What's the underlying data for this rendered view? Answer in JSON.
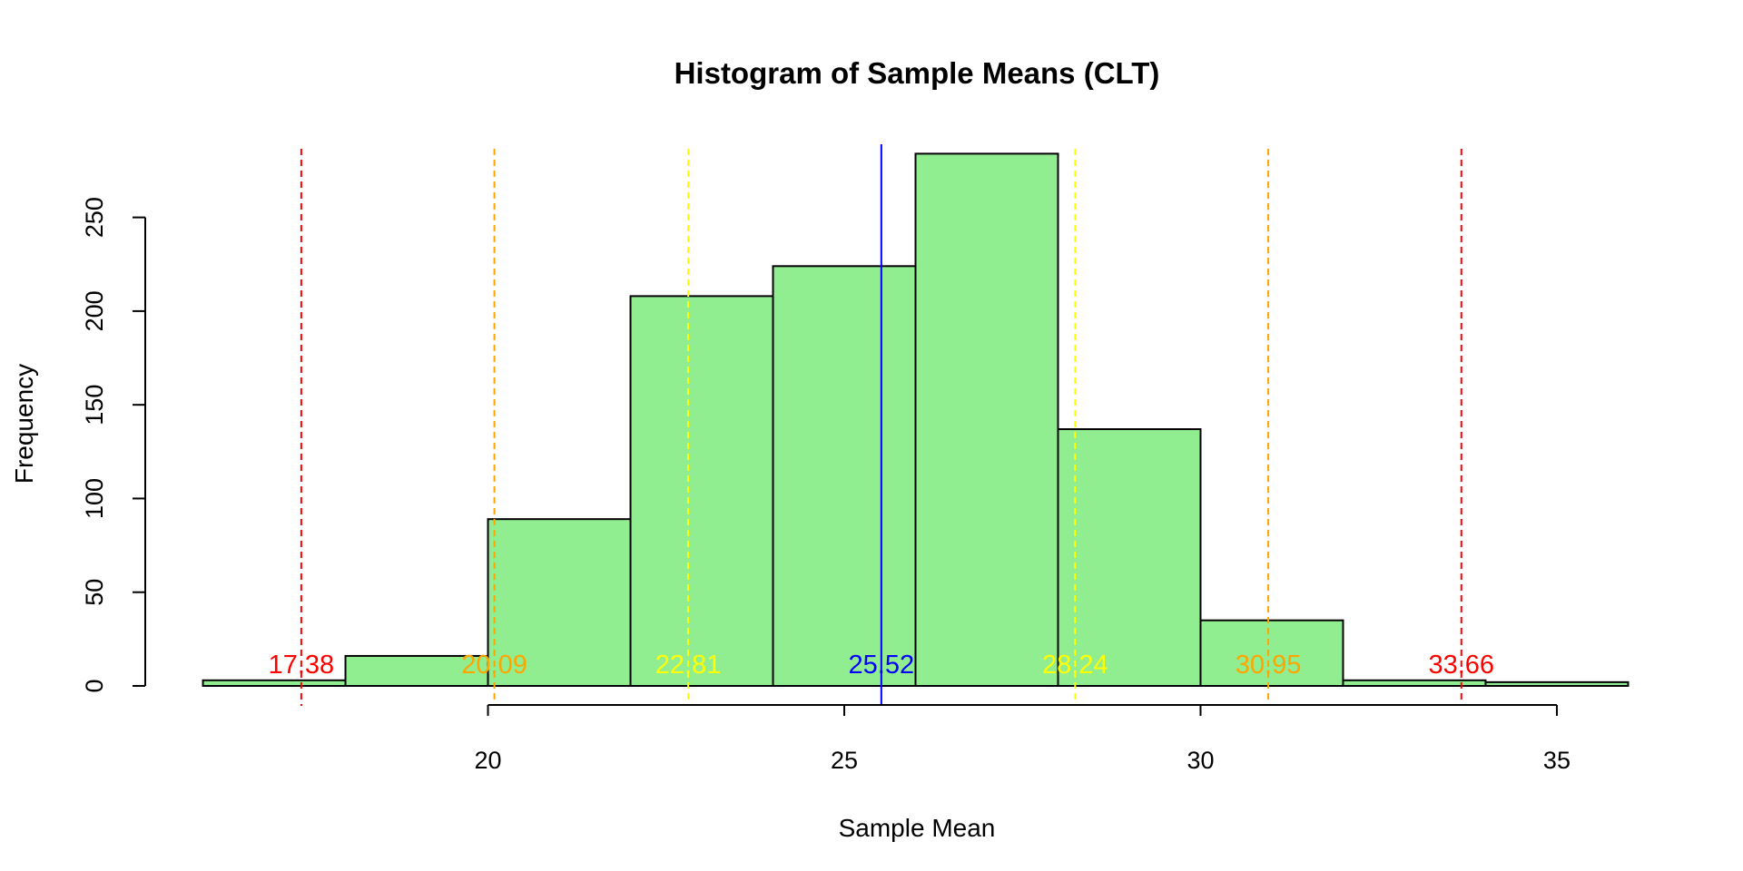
{
  "chart_data": {
    "type": "bar",
    "title": "Histogram of Sample Means (CLT)",
    "xlabel": "Sample Mean",
    "ylabel": "Frequency",
    "xlim": [
      15.7,
      36.3
    ],
    "ylim": [
      0,
      290
    ],
    "x_ticks": [
      20,
      25,
      30,
      35
    ],
    "y_ticks": [
      0,
      50,
      100,
      150,
      200,
      250
    ],
    "bar_color": "#90EE90",
    "bins": [
      {
        "start": 16,
        "end": 18,
        "count": 3
      },
      {
        "start": 18,
        "end": 20,
        "count": 16
      },
      {
        "start": 20,
        "end": 22,
        "count": 89
      },
      {
        "start": 22,
        "end": 24,
        "count": 208
      },
      {
        "start": 24,
        "end": 26,
        "count": 224
      },
      {
        "start": 26,
        "end": 28,
        "count": 284
      },
      {
        "start": 28,
        "end": 30,
        "count": 137
      },
      {
        "start": 30,
        "end": 32,
        "count": 35
      },
      {
        "start": 32,
        "end": 34,
        "count": 3
      },
      {
        "start": 34,
        "end": 36,
        "count": 2
      }
    ],
    "reference_lines": [
      {
        "x": 17.38,
        "label": "17.38",
        "color": "#FF0000",
        "style": "dashed"
      },
      {
        "x": 20.09,
        "label": "20.09",
        "color": "#FFA500",
        "style": "dashed"
      },
      {
        "x": 22.81,
        "label": "22.81",
        "color": "#FFFF00",
        "style": "dashed"
      },
      {
        "x": 25.52,
        "label": "25.52",
        "color": "#0000FF",
        "style": "solid"
      },
      {
        "x": 28.24,
        "label": "28.24",
        "color": "#FFFF00",
        "style": "dashed"
      },
      {
        "x": 30.95,
        "label": "30.95",
        "color": "#FFA500",
        "style": "dashed"
      },
      {
        "x": 33.66,
        "label": "33.66",
        "color": "#FF0000",
        "style": "dashed"
      }
    ]
  }
}
